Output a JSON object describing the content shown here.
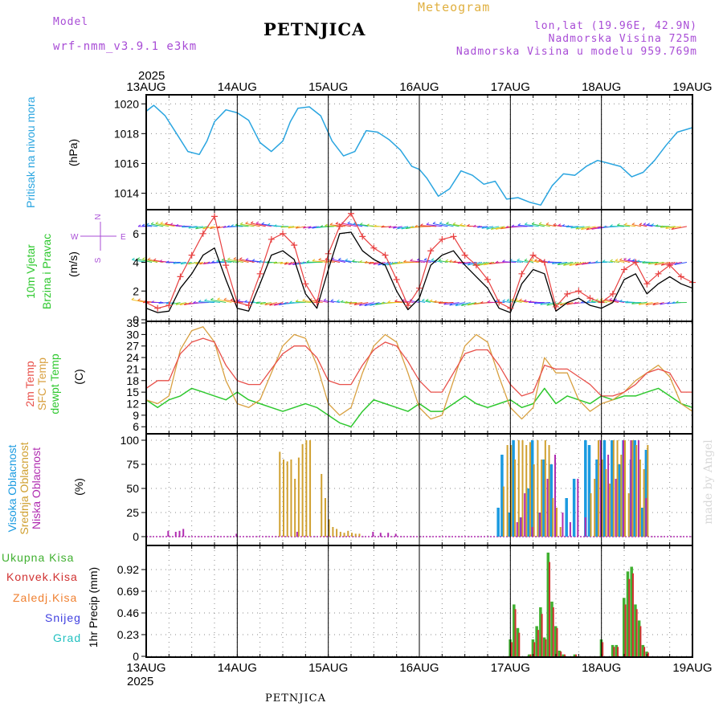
{
  "header": {
    "model_label": "Model",
    "model_name": "wrf-nmm_v3.9.1 e3km",
    "title": "PETNJICA",
    "meteogram": "Meteogram",
    "lonlat": "lon,lat (19.96E, 42.9N)",
    "elevation": "Nadmorska Visina 725m",
    "model_elevation": "Nadmorska Visina u modelu 959.769m"
  },
  "footer": {
    "title": "PETNJICA",
    "watermark": "made by Angel"
  },
  "colors": {
    "pressure": "#2aa5e0",
    "wind_speed": "#000000",
    "wind_gust": "#e84040",
    "temp2m": "#e8504a",
    "sfc": "#d8a040",
    "dewpt": "#2ec82e",
    "cloud_high": "#1a9ae0",
    "cloud_mid": "#d0a030",
    "cloud_low": "#b02cb0",
    "precip_total": "#40b030",
    "precip_conv": "#d03030",
    "precip_frozen": "#f08030",
    "snow": "#4040e0",
    "hail": "#20c0c0"
  },
  "chart_data": [
    {
      "type": "line",
      "id": "pressure",
      "title": "Pritisak na nivou mora",
      "ylabel": "(hPa)",
      "x_year": "2025",
      "x_ticks": [
        "13AUG",
        "14AUG",
        "15AUG",
        "16AUG",
        "17AUG",
        "18AUG",
        "19AUG"
      ],
      "xlim": [
        0,
        144
      ],
      "ylim": [
        1013,
        1020.5
      ],
      "y_ticks": [
        1014,
        1016,
        1018,
        1020
      ],
      "series": [
        {
          "name": "Pritisak",
          "color": "#2aa5e0",
          "x": [
            0,
            2,
            5,
            8,
            11,
            14,
            16,
            18,
            21,
            24,
            27,
            30,
            33,
            36,
            38,
            40,
            43,
            46,
            49,
            52,
            55,
            58,
            61,
            64,
            67,
            70,
            72,
            74,
            77,
            80,
            83,
            86,
            89,
            92,
            95,
            98,
            101,
            104,
            107,
            110,
            113,
            116,
            119,
            122,
            125,
            128,
            131,
            134,
            137,
            140,
            144
          ],
          "y": [
            1019.5,
            1019.9,
            1019.2,
            1018.0,
            1016.8,
            1016.6,
            1017.5,
            1018.8,
            1019.6,
            1019.4,
            1018.9,
            1017.4,
            1016.8,
            1017.5,
            1018.8,
            1019.7,
            1019.8,
            1019.2,
            1017.5,
            1016.5,
            1016.8,
            1018.2,
            1018.1,
            1017.6,
            1016.9,
            1015.8,
            1015.6,
            1015.0,
            1013.8,
            1014.3,
            1015.5,
            1015.2,
            1014.6,
            1014.8,
            1013.6,
            1013.7,
            1013.4,
            1013.2,
            1014.5,
            1015.3,
            1015.2,
            1015.8,
            1016.2,
            1016.0,
            1015.8,
            1015.1,
            1015.4,
            1016.2,
            1017.2,
            1018.1,
            1018.4
          ]
        }
      ]
    },
    {
      "type": "line",
      "id": "wind",
      "title": "10m Vjetar",
      "subtitle": "Brzina i Pravac",
      "ylabel": "(m/s)",
      "compass": [
        "N",
        "W",
        "E",
        "S"
      ],
      "xlim": [
        0,
        144
      ],
      "ylim": [
        0,
        7.5
      ],
      "y_ticks": [
        0,
        2,
        4,
        6
      ],
      "series": [
        {
          "name": "Brzina",
          "color": "#000000",
          "x": [
            0,
            3,
            6,
            9,
            12,
            15,
            18,
            21,
            24,
            27,
            30,
            33,
            36,
            39,
            42,
            45,
            48,
            51,
            54,
            57,
            60,
            63,
            66,
            69,
            72,
            75,
            78,
            81,
            84,
            87,
            90,
            93,
            96,
            99,
            102,
            105,
            108,
            111,
            114,
            117,
            120,
            123,
            126,
            129,
            132,
            135,
            138,
            141,
            144
          ],
          "y": [
            0.8,
            0.5,
            0.6,
            2.2,
            3.2,
            4.5,
            5.0,
            2.8,
            0.8,
            0.6,
            2.5,
            4.5,
            4.8,
            4.2,
            1.8,
            0.8,
            3.5,
            6.0,
            6.1,
            4.8,
            4.2,
            3.8,
            2.0,
            0.7,
            1.5,
            3.8,
            4.5,
            4.8,
            3.8,
            3.0,
            2.2,
            0.8,
            0.5,
            2.5,
            3.5,
            3.2,
            0.6,
            1.2,
            1.5,
            1.0,
            0.8,
            1.2,
            2.8,
            3.2,
            1.8,
            2.5,
            3.0,
            2.5,
            2.2
          ]
        },
        {
          "name": "Udar",
          "color": "#e84040",
          "x": [
            0,
            3,
            6,
            9,
            12,
            15,
            18,
            21,
            24,
            27,
            30,
            33,
            36,
            39,
            42,
            45,
            48,
            51,
            54,
            57,
            60,
            63,
            66,
            69,
            72,
            75,
            78,
            81,
            84,
            87,
            90,
            93,
            96,
            99,
            102,
            105,
            108,
            111,
            114,
            117,
            120,
            123,
            126,
            129,
            132,
            135,
            138,
            141,
            144
          ],
          "y": [
            1.2,
            0.8,
            1.0,
            3.0,
            4.5,
            6.0,
            7.2,
            3.8,
            1.2,
            1.0,
            3.2,
            5.6,
            6.0,
            5.2,
            2.5,
            1.2,
            4.6,
            6.5,
            7.4,
            5.8,
            5.0,
            4.5,
            2.8,
            1.0,
            2.2,
            4.8,
            5.6,
            5.8,
            4.5,
            3.8,
            2.8,
            1.2,
            0.8,
            3.2,
            4.5,
            4.0,
            0.9,
            1.8,
            2.0,
            1.5,
            1.2,
            1.8,
            3.5,
            4.0,
            2.5,
            3.2,
            3.8,
            3.0,
            2.6
          ]
        }
      ]
    },
    {
      "type": "line",
      "id": "temperature",
      "labels": [
        "2m Temp",
        "SFC Temp",
        "dewpt Temp"
      ],
      "ylabel": "(C)",
      "xlim": [
        0,
        144
      ],
      "ylim": [
        5,
        33
      ],
      "y_ticks": [
        6,
        9,
        12,
        15,
        18,
        21,
        24,
        27,
        30,
        33
      ],
      "series": [
        {
          "name": "2m Temp",
          "color": "#e8504a",
          "x": [
            0,
            3,
            6,
            9,
            12,
            15,
            18,
            21,
            24,
            27,
            30,
            33,
            36,
            39,
            42,
            45,
            48,
            51,
            54,
            57,
            60,
            63,
            66,
            69,
            72,
            75,
            78,
            81,
            84,
            87,
            90,
            93,
            96,
            99,
            102,
            105,
            108,
            111,
            114,
            117,
            120,
            123,
            126,
            129,
            132,
            135,
            138,
            141,
            144
          ],
          "y": [
            16,
            18,
            18,
            25,
            28,
            29,
            28,
            22,
            18,
            17,
            17,
            21,
            25,
            27,
            27,
            24,
            18,
            17,
            17,
            22,
            26,
            28,
            27,
            23,
            18,
            15,
            15,
            20,
            25,
            26,
            26,
            22,
            17,
            14,
            15,
            22,
            21,
            21,
            19,
            17,
            14,
            14,
            15,
            17,
            20,
            21,
            20,
            15,
            15
          ]
        },
        {
          "name": "SFC Temp",
          "color": "#d8a040",
          "x": [
            0,
            3,
            6,
            9,
            12,
            15,
            18,
            21,
            24,
            27,
            30,
            33,
            36,
            39,
            42,
            45,
            48,
            51,
            54,
            57,
            60,
            63,
            66,
            69,
            72,
            75,
            78,
            81,
            84,
            87,
            90,
            93,
            96,
            99,
            102,
            105,
            108,
            111,
            114,
            117,
            120,
            123,
            126,
            129,
            132,
            135,
            138,
            141,
            144
          ],
          "y": [
            13,
            12,
            14,
            26,
            31,
            32,
            28,
            18,
            12,
            11,
            13,
            20,
            27,
            30,
            29,
            22,
            12,
            9,
            11,
            20,
            27,
            30,
            28,
            20,
            11,
            8,
            9,
            18,
            27,
            30,
            28,
            19,
            11,
            8,
            11,
            24,
            20,
            20,
            13,
            10,
            12,
            13,
            15,
            18,
            20,
            22,
            19,
            12,
            10
          ]
        },
        {
          "name": "dewpt Temp",
          "color": "#2ec82e",
          "x": [
            0,
            3,
            6,
            9,
            12,
            15,
            18,
            21,
            24,
            27,
            30,
            33,
            36,
            39,
            42,
            45,
            48,
            51,
            54,
            57,
            60,
            63,
            66,
            69,
            72,
            75,
            78,
            81,
            84,
            87,
            90,
            93,
            96,
            99,
            102,
            105,
            108,
            111,
            114,
            117,
            120,
            123,
            126,
            129,
            132,
            135,
            138,
            141,
            144
          ],
          "y": [
            13,
            11,
            13,
            14,
            16,
            15,
            14,
            13,
            15,
            13,
            12,
            11,
            10,
            11,
            12,
            11,
            9,
            7,
            6,
            10,
            13,
            12,
            11,
            10,
            12,
            10,
            10,
            12,
            14,
            12,
            11,
            12,
            13,
            11,
            12,
            16,
            12,
            14,
            13,
            12,
            14,
            13,
            14,
            14,
            15,
            16,
            14,
            12,
            11
          ]
        }
      ]
    },
    {
      "type": "bar",
      "id": "clouds",
      "labels": [
        "Visoka Oblacnost",
        "Srednja Oblacnost",
        "Niska Oblacnost"
      ],
      "ylabel": "(%)",
      "xlim": [
        0,
        144
      ],
      "ylim": [
        0,
        100
      ],
      "y_ticks": [
        0,
        25,
        50,
        75,
        100
      ],
      "series": [
        {
          "name": "Visoka",
          "color": "#1a9ae0",
          "x": [
            92,
            93,
            95,
            96,
            98,
            100,
            101,
            103,
            104,
            106,
            110,
            112,
            115,
            116,
            118,
            120,
            122,
            124,
            125,
            127,
            128,
            130,
            131
          ],
          "values": [
            30,
            85,
            25,
            100,
            20,
            50,
            100,
            25,
            80,
            75,
            40,
            60,
            100,
            95,
            80,
            100,
            100,
            75,
            100,
            80,
            100,
            30,
            90
          ]
        },
        {
          "name": "Srednja",
          "color": "#d0a030",
          "x": [
            35,
            36,
            37,
            38,
            39,
            40,
            41,
            42,
            43,
            46,
            47,
            48,
            49,
            50,
            51,
            52,
            53,
            54,
            55,
            56,
            94,
            95,
            96,
            97,
            98,
            99,
            100,
            101,
            102,
            103,
            104,
            105,
            106,
            107,
            108,
            109,
            117,
            118,
            119,
            120,
            121,
            122,
            123,
            124,
            125,
            126,
            127,
            128,
            129,
            130,
            131,
            132
          ],
          "values": [
            88,
            80,
            78,
            80,
            60,
            82,
            96,
            100,
            100,
            65,
            40,
            18,
            10,
            8,
            5,
            4,
            6,
            4,
            3,
            3,
            52,
            95,
            95,
            80,
            100,
            100,
            95,
            98,
            75,
            100,
            80,
            100,
            95,
            40,
            30,
            10,
            45,
            60,
            100,
            80,
            70,
            55,
            100,
            100,
            85,
            100,
            45,
            100,
            95,
            80,
            70,
            95
          ]
        },
        {
          "name": "Niska",
          "color": "#b02cb0",
          "x": [
            6,
            8,
            9,
            10,
            24,
            40,
            60,
            62,
            64,
            66,
            98,
            99,
            100,
            102,
            104,
            106,
            108,
            110,
            112,
            114,
            116,
            120,
            122,
            124,
            126,
            128,
            130,
            132
          ],
          "values": [
            6,
            5,
            6,
            8,
            3,
            5,
            5,
            4,
            4,
            3,
            15,
            20,
            45,
            10,
            25,
            60,
            85,
            25,
            15,
            60,
            20,
            100,
            85,
            60,
            100,
            100,
            100,
            40
          ]
        }
      ]
    },
    {
      "type": "bar",
      "id": "precip",
      "labels": [
        "Ukupna Kisa",
        "Konvek.Kisa",
        "Zaledj.Kisa",
        "Snijeg",
        "Grad"
      ],
      "ylabel": "1hr Precip (mm)",
      "xlim": [
        0,
        144
      ],
      "ylim": [
        0,
        1.15
      ],
      "y_ticks": [
        0,
        0.23,
        0.46,
        0.69,
        0.92
      ],
      "series": [
        {
          "name": "Ukupna Kisa",
          "color": "#40b030",
          "x": [
            96,
            97,
            98,
            101,
            102,
            103,
            104,
            105,
            106,
            107,
            108,
            109,
            110,
            113,
            120,
            123,
            124,
            126,
            127,
            128,
            129,
            130,
            131,
            132
          ],
          "values": [
            0.18,
            0.55,
            0.3,
            0.02,
            0.18,
            0.32,
            0.52,
            0.2,
            1.1,
            0.58,
            0.32,
            0.06,
            0.02,
            0.02,
            0.18,
            0.12,
            0.12,
            0.62,
            0.9,
            0.95,
            0.55,
            0.38,
            0.12,
            0.05
          ]
        },
        {
          "name": "Konvek.Kisa",
          "color": "#d03030",
          "x": [
            96,
            97,
            98,
            101,
            102,
            103,
            104,
            105,
            106,
            107,
            108,
            109,
            110,
            113,
            120,
            123,
            124,
            126,
            127,
            128,
            129,
            130,
            131,
            132
          ],
          "values": [
            0.15,
            0.5,
            0.25,
            0.02,
            0.15,
            0.28,
            0.45,
            0.18,
            1.0,
            0.52,
            0.3,
            0.05,
            0.02,
            0.02,
            0.15,
            0.1,
            0.1,
            0.55,
            0.82,
            0.88,
            0.5,
            0.32,
            0.1,
            0.04
          ]
        }
      ]
    }
  ]
}
